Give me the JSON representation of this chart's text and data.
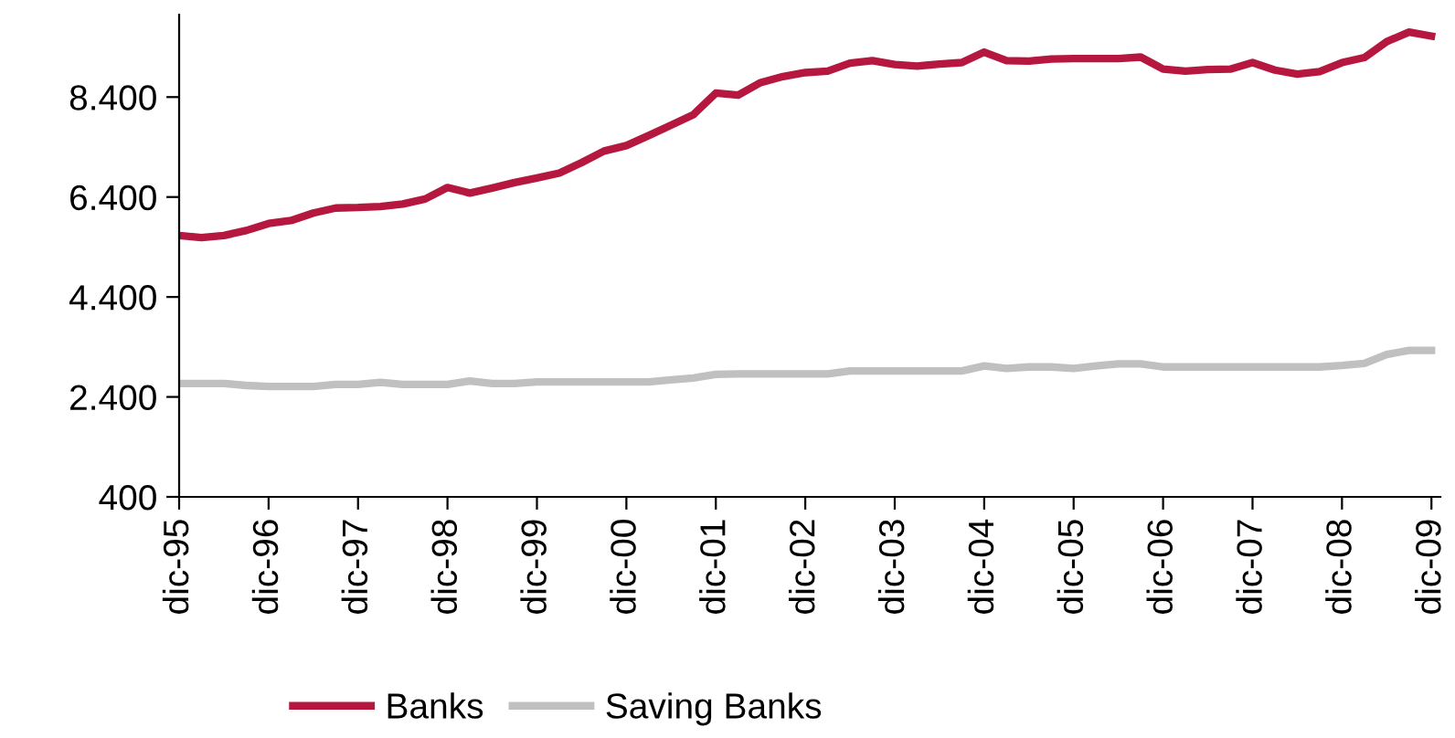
{
  "chart_data": {
    "type": "line",
    "categories": [
      "dic-95",
      null,
      null,
      null,
      "dic-96",
      null,
      null,
      null,
      "dic-97",
      null,
      null,
      null,
      "dic-98",
      null,
      null,
      null,
      "dic-99",
      null,
      null,
      null,
      "dic-00",
      null,
      null,
      null,
      "dic-01",
      null,
      null,
      null,
      "dic-02",
      null,
      null,
      null,
      "dic-03",
      null,
      null,
      null,
      "dic-04",
      null,
      null,
      null,
      "dic-05",
      null,
      null,
      null,
      "dic-06",
      null,
      null,
      null,
      "dic-07",
      null,
      null,
      null,
      "dic-08",
      null,
      null,
      null,
      "dic-09"
    ],
    "series": [
      {
        "name": "Banks",
        "color": "#b5173f",
        "values": [
          5630,
          5590,
          5630,
          5730,
          5870,
          5930,
          6080,
          6180,
          6190,
          6210,
          6260,
          6360,
          6590,
          6480,
          6580,
          6690,
          6780,
          6880,
          7090,
          7320,
          7430,
          7630,
          7840,
          8050,
          8480,
          8440,
          8690,
          8810,
          8890,
          8920,
          9080,
          9130,
          9050,
          9020,
          9060,
          9090,
          9300,
          9130,
          9120,
          9160,
          9170,
          9170,
          9170,
          9200,
          8960,
          8920,
          8950,
          8960,
          9090,
          8940,
          8860,
          8910,
          9090,
          9190,
          9510,
          9700,
          9620
        ]
      },
      {
        "name": "Saving Banks",
        "color": "#c0c0c0",
        "values": [
          2670,
          2670,
          2670,
          2630,
          2610,
          2610,
          2610,
          2650,
          2650,
          2690,
          2650,
          2650,
          2650,
          2720,
          2670,
          2670,
          2700,
          2700,
          2700,
          2700,
          2700,
          2700,
          2740,
          2780,
          2850,
          2860,
          2860,
          2860,
          2860,
          2860,
          2920,
          2920,
          2920,
          2920,
          2920,
          2920,
          3020,
          2970,
          3000,
          3000,
          2970,
          3020,
          3060,
          3060,
          3000,
          3000,
          3000,
          3000,
          3000,
          3000,
          3000,
          3000,
          3030,
          3070,
          3250,
          3330,
          3330
        ]
      }
    ],
    "ylim": [
      400,
      10050
    ],
    "yticks": [
      {
        "value": 400,
        "label": "400"
      },
      {
        "value": 2400,
        "label": "2.400"
      },
      {
        "value": 4400,
        "label": "4.400"
      },
      {
        "value": 6400,
        "label": "6.400"
      },
      {
        "value": 8400,
        "label": "8.400"
      }
    ],
    "legend": "bottom",
    "grid": false,
    "marker": "none",
    "line_style": "solid"
  }
}
